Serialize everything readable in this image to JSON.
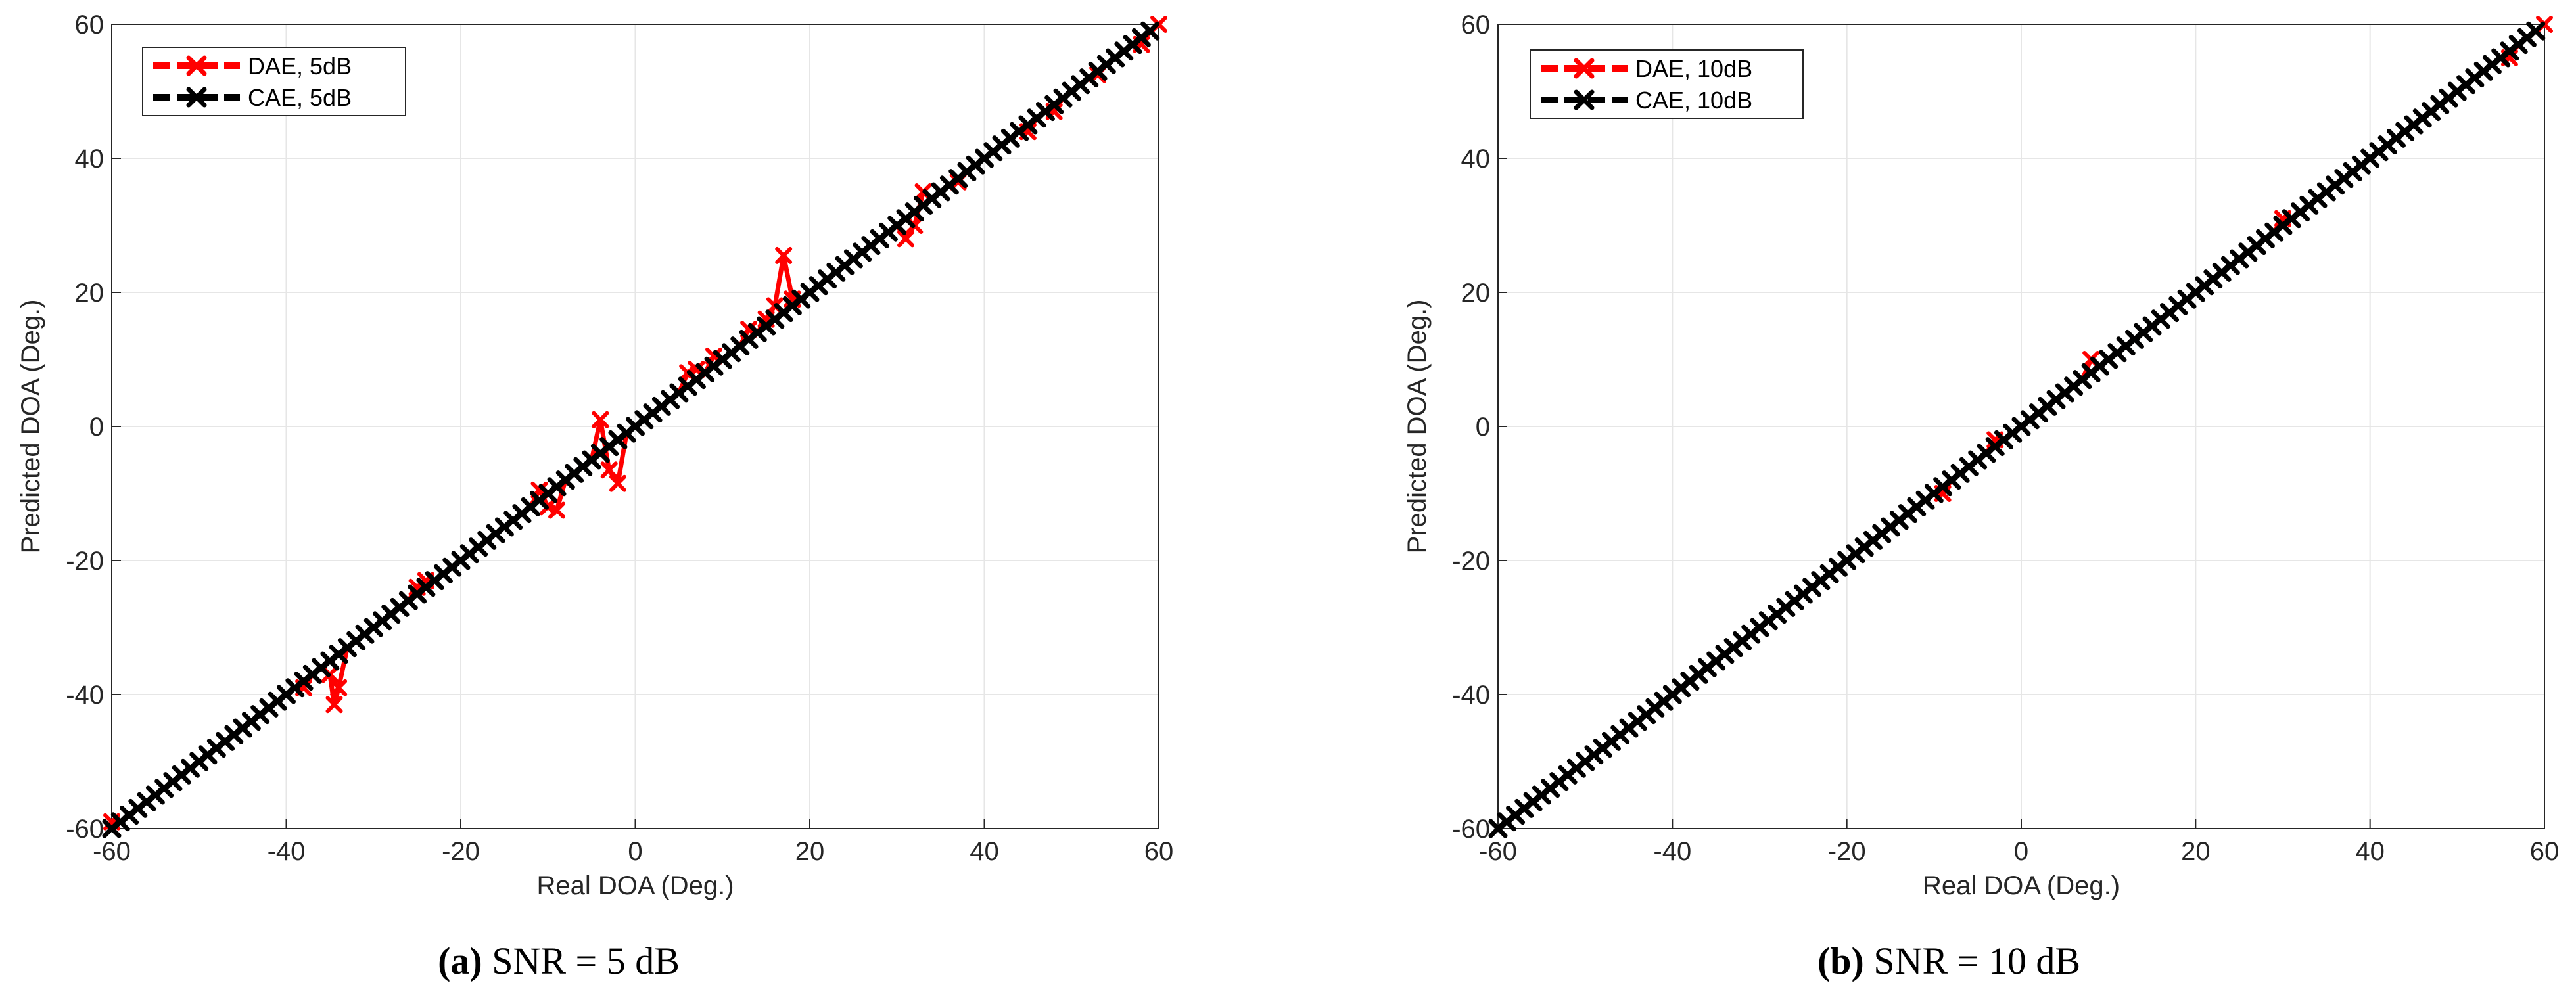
{
  "colors": {
    "dae": "#ff0000",
    "cae": "#000000",
    "grid": "#e6e6e6",
    "axis": "#262626"
  },
  "chart_data": [
    {
      "type": "line",
      "title": "",
      "caption": {
        "letter": "(a)",
        "text": "SNR = 5 dB"
      },
      "xlabel": "Real DOA (Deg.)",
      "ylabel": "Predicted DOA (Deg.)",
      "xlim": [
        -60,
        60
      ],
      "ylim": [
        -60,
        60
      ],
      "xticks": [
        -60,
        -40,
        -20,
        0,
        20,
        40,
        60
      ],
      "yticks": [
        -60,
        -40,
        -20,
        0,
        20,
        40,
        60
      ],
      "xtick_labels": [
        "-60",
        "-40",
        "-20",
        "0",
        "20",
        "40",
        "60"
      ],
      "ytick_labels": [
        "-60",
        "-40",
        "-20",
        "0",
        "20",
        "40",
        "60"
      ],
      "grid": true,
      "legend_position": "top-left",
      "x_step": 1,
      "series": [
        {
          "name": "DAE, 5dB",
          "color": "#ff0000",
          "marker": "x",
          "description": "near ideal line with deviations",
          "deviations": [
            {
              "x": -60,
              "y": -59
            },
            {
              "x": -38,
              "y": -39
            },
            {
              "x": -35,
              "y": -37
            },
            {
              "x": -34.5,
              "y": -41.5
            },
            {
              "x": -34,
              "y": -39
            },
            {
              "x": -25,
              "y": -24
            },
            {
              "x": -24,
              "y": -23
            },
            {
              "x": -11,
              "y": -9.5
            },
            {
              "x": -10,
              "y": -12
            },
            {
              "x": -9,
              "y": -12.5
            },
            {
              "x": -4,
              "y": 1
            },
            {
              "x": -3,
              "y": -6.5
            },
            {
              "x": -2,
              "y": -8.5
            },
            {
              "x": 6,
              "y": 8
            },
            {
              "x": 7,
              "y": 8.5
            },
            {
              "x": 9,
              "y": 10.5
            },
            {
              "x": 13,
              "y": 14.5
            },
            {
              "x": 15,
              "y": 16
            },
            {
              "x": 16,
              "y": 18
            },
            {
              "x": 17,
              "y": 25.5
            },
            {
              "x": 18,
              "y": 19
            },
            {
              "x": 31,
              "y": 28
            },
            {
              "x": 32,
              "y": 30
            },
            {
              "x": 33,
              "y": 35
            },
            {
              "x": 37,
              "y": 36.5
            },
            {
              "x": 45,
              "y": 44
            },
            {
              "x": 48,
              "y": 47
            },
            {
              "x": 53,
              "y": 52.5
            },
            {
              "x": 58,
              "y": 57
            }
          ]
        },
        {
          "name": "CAE, 5dB",
          "color": "#000000",
          "marker": "x",
          "description": "ideal y = x"
        }
      ]
    },
    {
      "type": "line",
      "title": "",
      "caption": {
        "letter": "(b)",
        "text": "SNR = 10 dB"
      },
      "xlabel": "Real DOA (Deg.)",
      "ylabel": "Predicted DOA (Deg.)",
      "xlim": [
        -60,
        60
      ],
      "ylim": [
        -60,
        60
      ],
      "xticks": [
        -60,
        -40,
        -20,
        0,
        20,
        40,
        60
      ],
      "yticks": [
        -60,
        -40,
        -20,
        0,
        20,
        40,
        60
      ],
      "xtick_labels": [
        "-60",
        "-40",
        "-20",
        "0",
        "20",
        "40",
        "60"
      ],
      "ytick_labels": [
        "-60",
        "-40",
        "-20",
        "0",
        "20",
        "40",
        "60"
      ],
      "grid": true,
      "legend_position": "top-left",
      "x_step": 1,
      "series": [
        {
          "name": "DAE, 10dB",
          "color": "#ff0000",
          "marker": "x",
          "description": "near ideal line with small deviations",
          "deviations": [
            {
              "x": -9,
              "y": -10
            },
            {
              "x": -3,
              "y": -2
            },
            {
              "x": 8,
              "y": 10
            },
            {
              "x": 30,
              "y": 31
            },
            {
              "x": 56,
              "y": 55
            }
          ]
        },
        {
          "name": "CAE, 10dB",
          "color": "#000000",
          "marker": "x",
          "description": "ideal y = x"
        }
      ]
    }
  ]
}
